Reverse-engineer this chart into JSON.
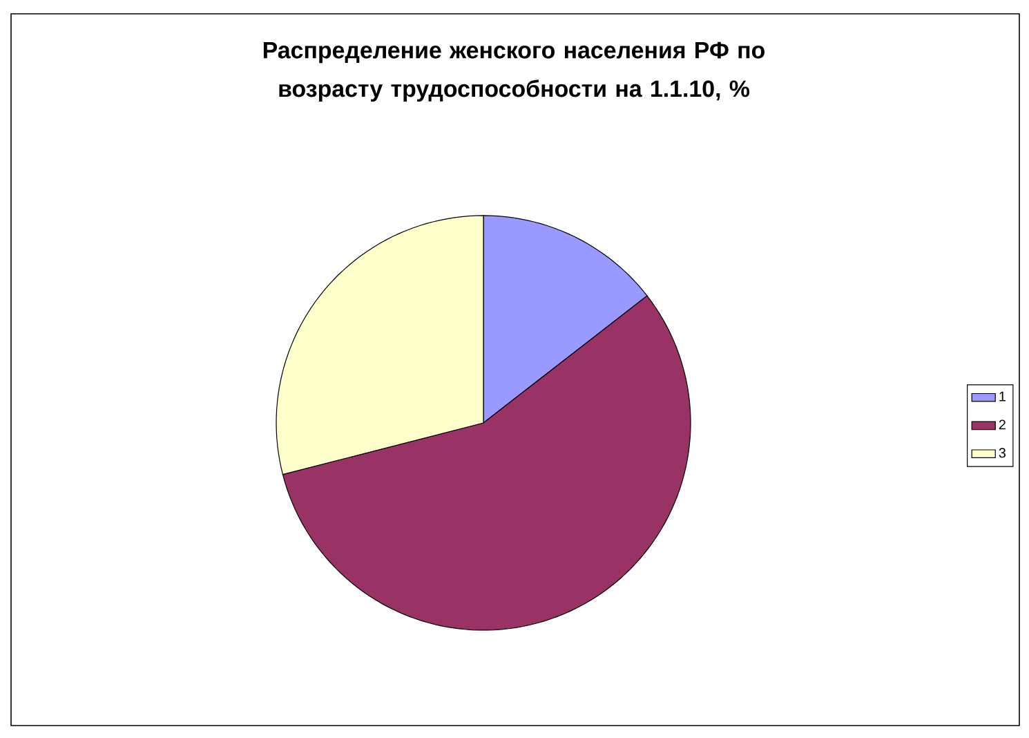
{
  "chart_data": {
    "type": "pie",
    "title": "Распределение женского населения РФ по возрасту трудоспособности на 1.1.10, %",
    "categories": [
      "1",
      "2",
      "3"
    ],
    "values": [
      14.5,
      56.5,
      29
    ],
    "colors": [
      "#9999ff",
      "#993366",
      "#ffffcc"
    ],
    "legend": "right"
  }
}
